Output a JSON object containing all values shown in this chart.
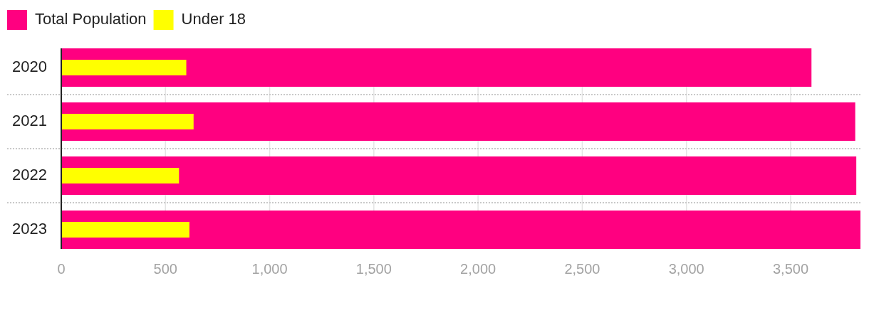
{
  "chart_data": {
    "type": "bar",
    "orientation": "horizontal",
    "categories": [
      "2020",
      "2021",
      "2022",
      "2023"
    ],
    "series": [
      {
        "name": "Total Population",
        "color": "#ff0080",
        "values": [
          3600,
          3810,
          3815,
          3835
        ]
      },
      {
        "name": "Under 18",
        "color": "#ffff00",
        "values": [
          600,
          635,
          565,
          615
        ]
      }
    ],
    "xlim": [
      0,
      3835
    ],
    "xticks": [
      0,
      500,
      {
        "value": 1000,
        "label": "1,000"
      },
      {
        "value": 1500,
        "label": "1,500"
      },
      {
        "value": 2000,
        "label": "2,000"
      },
      {
        "value": 2500,
        "label": "2,500"
      },
      {
        "value": 3000,
        "label": "3,000"
      },
      {
        "value": 3500,
        "label": "3,500"
      }
    ],
    "grid": true,
    "legend": "top left"
  }
}
